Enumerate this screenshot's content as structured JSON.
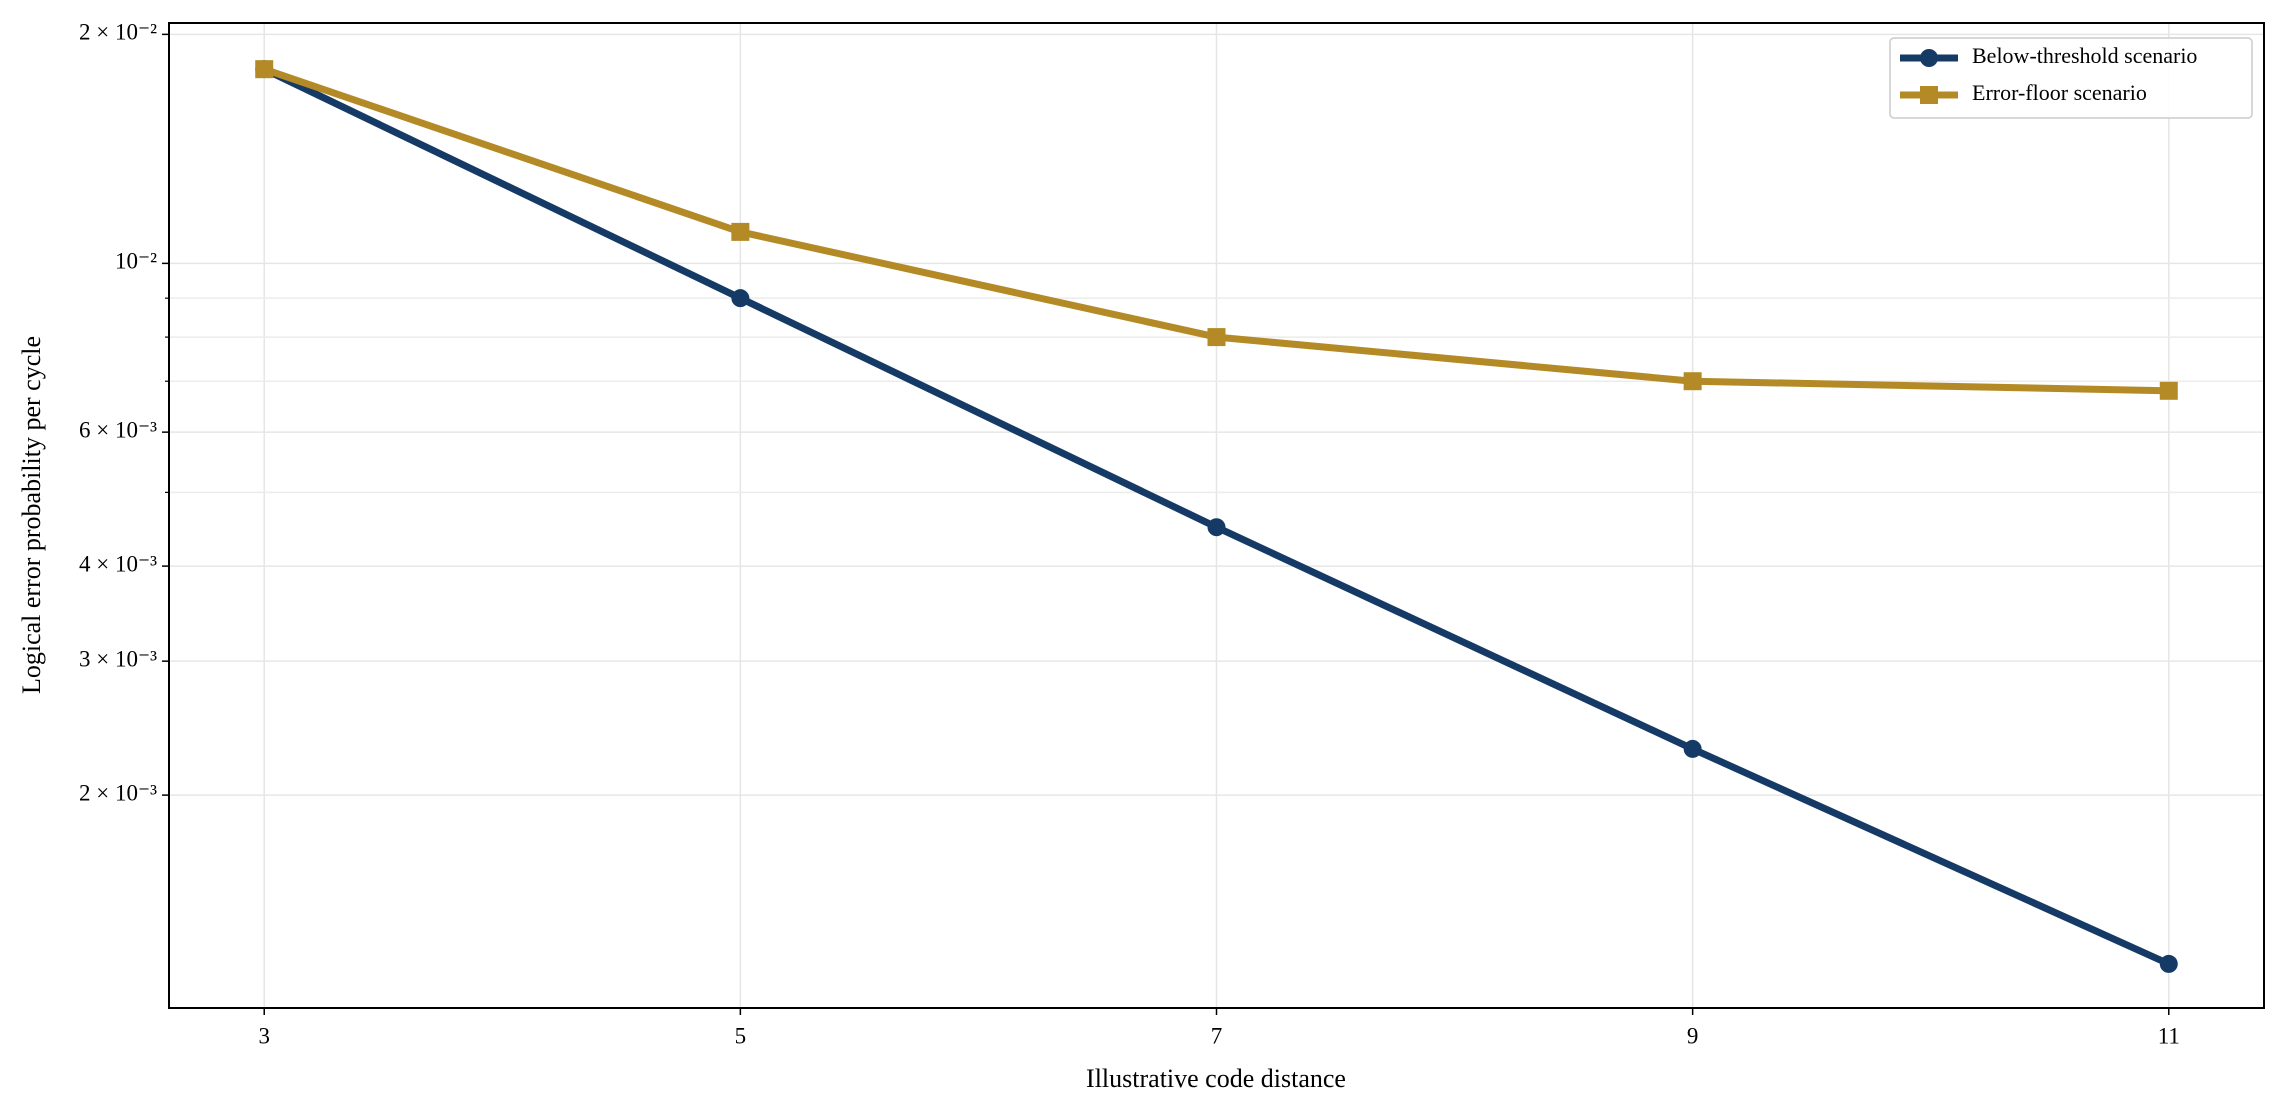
{
  "chart_data": {
    "type": "line",
    "x_label": "Illustrative code distance",
    "y_label": "Logical error probability per cycle",
    "x": [
      3,
      5,
      7,
      9,
      11
    ],
    "series": [
      {
        "name": "Below-threshold scenario",
        "color": "#163a66",
        "marker": "circle",
        "values": [
          0.018,
          0.009,
          0.0045,
          0.0023,
          0.0012
        ]
      },
      {
        "name": "Error-floor scenario",
        "color": "#b38a26",
        "marker": "square",
        "values": [
          0.018,
          0.011,
          0.008,
          0.007,
          0.0068
        ]
      }
    ],
    "xlim": [
      2.6,
      11.4
    ],
    "xticks": [
      3,
      5,
      7,
      9,
      11
    ],
    "ylim": [
      0.00105,
      0.0207
    ],
    "yscale": "log",
    "yticks": [
      {
        "value": 0.02,
        "label": "2 × 10⁻²"
      },
      {
        "value": 0.01,
        "label": "10⁻²"
      },
      {
        "value": 0.006,
        "label": "6 × 10⁻³"
      },
      {
        "value": 0.004,
        "label": "4 × 10⁻³"
      },
      {
        "value": 0.003,
        "label": "3 × 10⁻³"
      },
      {
        "value": 0.002,
        "label": "2 × 10⁻³"
      }
    ],
    "minor_yticks": [
      0.005,
      0.007,
      0.008,
      0.009
    ],
    "grid": true,
    "legend": "upper-right"
  }
}
